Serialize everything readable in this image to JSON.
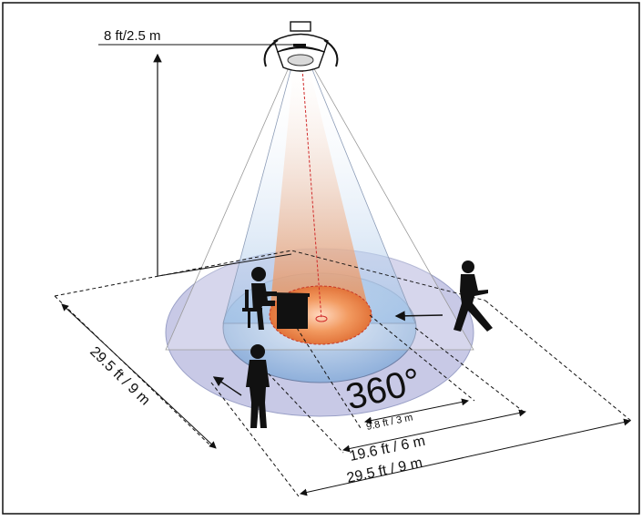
{
  "height_label": "8 ft/2.5 m",
  "coverage_label": "360°",
  "dimensions": {
    "inner": "9.8 ft / 3 m",
    "middle": "19.6 ft / 6 m",
    "outer": "29.5 ft / 9 m",
    "side": "29.5 ft / 9 m"
  },
  "colors": {
    "outer_zone": "#c9c9e6",
    "middle_zone": "#a9c3e4",
    "inner_zone": "#e98a4f",
    "border": "#111111"
  }
}
